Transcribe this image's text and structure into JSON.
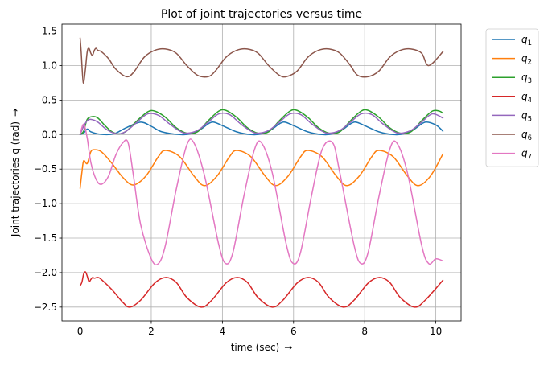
{
  "chart_data": {
    "type": "line",
    "title": "Plot of joint trajectories versus time",
    "xlabel": "time (sec)",
    "ylabel": "Joint trajectories q (rad)",
    "xlabel_arrow": "→",
    "ylabel_arrow": "→",
    "xlim": [
      -0.51,
      10.71
    ],
    "ylim": [
      -2.7,
      1.6
    ],
    "x_ticks": [
      0,
      2,
      4,
      6,
      8,
      10
    ],
    "y_ticks": [
      -2.5,
      -2.0,
      -1.5,
      -1.0,
      -0.5,
      0.0,
      0.5,
      1.0,
      1.5
    ],
    "x_tick_labels": [
      "0",
      "2",
      "4",
      "6",
      "8",
      "10"
    ],
    "y_tick_labels": [
      "−2.5",
      "−2.0",
      "−1.5",
      "−1.0",
      "−0.5",
      "0.0",
      "0.5",
      "1.0",
      "1.5"
    ],
    "grid": true,
    "legend_position": "outside-right-top",
    "series": [
      {
        "name": "q1",
        "label_base": "q",
        "label_sub": "1",
        "color": "#1f77b4",
        "x": [
          0,
          0.1,
          0.2,
          0.3,
          0.5,
          0.8,
          1.0,
          1.3,
          1.7,
          2.0,
          2.3,
          2.8,
          3.1,
          3.4,
          3.7,
          4.0,
          4.4,
          4.8,
          5.1,
          5.4,
          5.7,
          6.0,
          6.4,
          6.8,
          7.1,
          7.4,
          7.7,
          8.0,
          8.4,
          8.8,
          9.1,
          9.4,
          9.7,
          10.0,
          10.2
        ],
        "y": [
          0.0,
          0.02,
          0.08,
          0.04,
          0.01,
          0.0,
          0.02,
          0.1,
          0.18,
          0.12,
          0.04,
          0.0,
          0.01,
          0.08,
          0.18,
          0.13,
          0.04,
          0.0,
          0.01,
          0.08,
          0.18,
          0.13,
          0.04,
          0.0,
          0.01,
          0.08,
          0.18,
          0.13,
          0.04,
          0.0,
          0.01,
          0.08,
          0.18,
          0.14,
          0.05
        ]
      },
      {
        "name": "q2",
        "label_base": "q",
        "label_sub": "2",
        "color": "#ff7f0e",
        "x": [
          0,
          0.05,
          0.1,
          0.2,
          0.3,
          0.4,
          0.6,
          0.9,
          1.2,
          1.5,
          1.85,
          2.2,
          2.4,
          2.8,
          3.2,
          3.5,
          3.85,
          4.2,
          4.4,
          4.8,
          5.2,
          5.5,
          5.85,
          6.2,
          6.4,
          6.8,
          7.2,
          7.5,
          7.85,
          8.2,
          8.4,
          8.8,
          9.2,
          9.5,
          9.85,
          10.2
        ],
        "y": [
          -0.78,
          -0.55,
          -0.38,
          -0.42,
          -0.25,
          -0.22,
          -0.25,
          -0.42,
          -0.62,
          -0.73,
          -0.6,
          -0.32,
          -0.23,
          -0.32,
          -0.6,
          -0.74,
          -0.6,
          -0.32,
          -0.23,
          -0.32,
          -0.6,
          -0.74,
          -0.6,
          -0.32,
          -0.23,
          -0.32,
          -0.6,
          -0.74,
          -0.6,
          -0.32,
          -0.23,
          -0.32,
          -0.6,
          -0.74,
          -0.6,
          -0.28
        ]
      },
      {
        "name": "q3",
        "label_base": "q",
        "label_sub": "3",
        "color": "#2ca02c",
        "x": [
          0,
          0.1,
          0.2,
          0.35,
          0.5,
          0.7,
          0.9,
          1.1,
          1.3,
          1.6,
          1.9,
          2.1,
          2.4,
          2.7,
          3.0,
          3.3,
          3.6,
          3.9,
          4.1,
          4.4,
          4.7,
          5.0,
          5.3,
          5.6,
          5.9,
          6.1,
          6.4,
          6.7,
          7.0,
          7.3,
          7.6,
          7.9,
          8.1,
          8.4,
          8.7,
          9.0,
          9.3,
          9.6,
          9.9,
          10.1,
          10.2
        ],
        "y": [
          0.0,
          0.05,
          0.22,
          0.26,
          0.24,
          0.13,
          0.04,
          0.01,
          0.05,
          0.2,
          0.33,
          0.34,
          0.25,
          0.1,
          0.02,
          0.04,
          0.2,
          0.34,
          0.35,
          0.25,
          0.1,
          0.02,
          0.04,
          0.2,
          0.34,
          0.35,
          0.25,
          0.1,
          0.02,
          0.04,
          0.2,
          0.34,
          0.35,
          0.25,
          0.1,
          0.02,
          0.04,
          0.2,
          0.34,
          0.34,
          0.31
        ]
      },
      {
        "name": "q4",
        "label_base": "q",
        "label_sub": "4",
        "color": "#d62728",
        "x": [
          0,
          0.05,
          0.1,
          0.15,
          0.2,
          0.25,
          0.3,
          0.35,
          0.4,
          0.5,
          0.6,
          0.9,
          1.2,
          1.4,
          1.7,
          2.1,
          2.4,
          2.7,
          3.0,
          3.4,
          3.7,
          4.1,
          4.4,
          4.7,
          5.0,
          5.4,
          5.7,
          6.1,
          6.4,
          6.7,
          7.0,
          7.4,
          7.7,
          8.1,
          8.4,
          8.7,
          9.0,
          9.4,
          9.7,
          10.2
        ],
        "y": [
          -2.19,
          -2.14,
          -2.02,
          -1.99,
          -2.05,
          -2.13,
          -2.1,
          -2.07,
          -2.08,
          -2.07,
          -2.1,
          -2.25,
          -2.43,
          -2.5,
          -2.4,
          -2.15,
          -2.07,
          -2.14,
          -2.36,
          -2.5,
          -2.4,
          -2.15,
          -2.07,
          -2.14,
          -2.36,
          -2.5,
          -2.4,
          -2.15,
          -2.07,
          -2.14,
          -2.36,
          -2.5,
          -2.4,
          -2.15,
          -2.07,
          -2.14,
          -2.36,
          -2.5,
          -2.4,
          -2.11
        ]
      },
      {
        "name": "q5",
        "label_base": "q",
        "label_sub": "5",
        "color": "#9467bd",
        "x": [
          0,
          0.1,
          0.2,
          0.3,
          0.5,
          0.7,
          0.9,
          1.1,
          1.3,
          1.6,
          1.9,
          2.2,
          2.5,
          2.8,
          3.0,
          3.3,
          3.6,
          3.9,
          4.2,
          4.5,
          4.8,
          5.0,
          5.3,
          5.6,
          5.9,
          6.2,
          6.5,
          6.8,
          7.0,
          7.3,
          7.6,
          7.9,
          8.2,
          8.5,
          8.8,
          9.0,
          9.3,
          9.6,
          9.9,
          10.2
        ],
        "y": [
          0.0,
          0.12,
          0.2,
          0.22,
          0.18,
          0.09,
          0.03,
          0.01,
          0.05,
          0.18,
          0.3,
          0.28,
          0.16,
          0.05,
          0.02,
          0.06,
          0.18,
          0.3,
          0.29,
          0.16,
          0.05,
          0.02,
          0.06,
          0.18,
          0.3,
          0.29,
          0.16,
          0.05,
          0.02,
          0.06,
          0.18,
          0.3,
          0.29,
          0.16,
          0.05,
          0.02,
          0.06,
          0.18,
          0.3,
          0.24
        ]
      },
      {
        "name": "q6",
        "label_base": "q",
        "label_sub": "6",
        "color": "#8c564b",
        "x": [
          0,
          0.03,
          0.07,
          0.1,
          0.15,
          0.2,
          0.25,
          0.3,
          0.35,
          0.4,
          0.45,
          0.5,
          0.6,
          0.8,
          1.0,
          1.3,
          1.5,
          1.8,
          2.1,
          2.4,
          2.7,
          3.0,
          3.3,
          3.6,
          3.8,
          4.1,
          4.4,
          4.7,
          5.0,
          5.3,
          5.6,
          5.8,
          6.1,
          6.4,
          6.7,
          7.0,
          7.3,
          7.6,
          7.8,
          8.1,
          8.4,
          8.7,
          9.0,
          9.3,
          9.6,
          9.8,
          10.2
        ],
        "y": [
          1.4,
          1.2,
          0.85,
          0.75,
          0.95,
          1.2,
          1.25,
          1.18,
          1.15,
          1.22,
          1.25,
          1.22,
          1.2,
          1.1,
          0.95,
          0.84,
          0.9,
          1.12,
          1.22,
          1.24,
          1.18,
          1.0,
          0.86,
          0.84,
          0.92,
          1.12,
          1.22,
          1.24,
          1.18,
          1.0,
          0.86,
          0.84,
          0.92,
          1.12,
          1.22,
          1.24,
          1.18,
          1.0,
          0.86,
          0.84,
          0.92,
          1.12,
          1.22,
          1.24,
          1.18,
          1.0,
          1.2
        ]
      },
      {
        "name": "q7",
        "label_base": "q",
        "label_sub": "7",
        "color": "#e377c2",
        "x": [
          0,
          0.1,
          0.2,
          0.3,
          0.45,
          0.6,
          0.8,
          1.0,
          1.2,
          1.35,
          1.5,
          1.7,
          2.0,
          2.2,
          2.4,
          2.7,
          3.0,
          3.2,
          3.5,
          3.9,
          4.1,
          4.3,
          4.6,
          4.9,
          5.1,
          5.4,
          5.8,
          6.0,
          6.2,
          6.5,
          6.8,
          7.1,
          7.3,
          7.7,
          7.9,
          8.1,
          8.4,
          8.7,
          8.9,
          9.2,
          9.6,
          9.8,
          10.0,
          10.2
        ],
        "y": [
          0.0,
          0.15,
          -0.05,
          -0.4,
          -0.65,
          -0.72,
          -0.6,
          -0.3,
          -0.12,
          -0.12,
          -0.6,
          -1.3,
          -1.8,
          -1.87,
          -1.6,
          -0.8,
          -0.15,
          -0.12,
          -0.6,
          -1.6,
          -1.87,
          -1.7,
          -0.9,
          -0.22,
          -0.12,
          -0.55,
          -1.6,
          -1.87,
          -1.7,
          -0.9,
          -0.22,
          -0.12,
          -0.55,
          -1.6,
          -1.87,
          -1.7,
          -0.9,
          -0.22,
          -0.12,
          -0.55,
          -1.6,
          -1.87,
          -1.8,
          -1.83
        ]
      }
    ]
  }
}
